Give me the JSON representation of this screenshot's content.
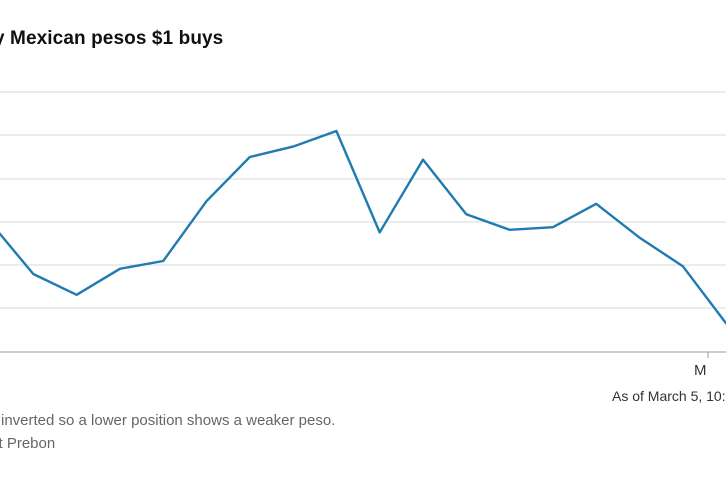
{
  "chart_data": {
    "type": "line",
    "title": "y Mexican pesos $1 buys",
    "x_tick_labels": [
      "M"
    ],
    "as_of": "As of March 5, 10:",
    "note": "is inverted so a lower position shows a weaker peso.",
    "source": "ett Prebon",
    "y_inverted": true,
    "grid": true,
    "series": [
      {
        "color": "#1f7bb0",
        "values": [
          17.3,
          17.5,
          17.58,
          17.48,
          17.45,
          17.22,
          17.05,
          17.01,
          16.95,
          17.34,
          17.06,
          17.27,
          17.33,
          17.32,
          17.23,
          17.36,
          17.47,
          17.69
        ]
      }
    ],
    "ylim": [
      16.8,
      17.8
    ]
  }
}
